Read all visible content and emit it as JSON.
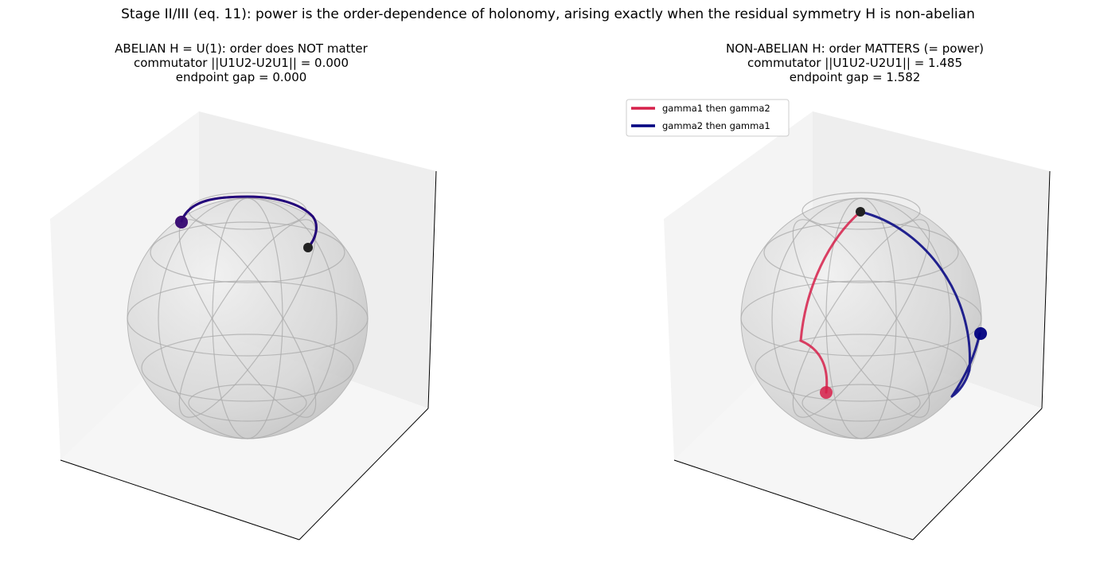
{
  "suptitle": "Stage II/III (eq. 11): power is the order-dependence of holonomy, arising exactly when the residual symmetry H is non-abelian",
  "panels": [
    {
      "title_lines": [
        "ABELIAN H = U(1): order does NOT matter",
        "commutator ||U1U2-U2U1|| = 0.000",
        "endpoint gap = 0.000"
      ],
      "commutator_norm": 0.0,
      "endpoint_gap": 0.0
    },
    {
      "title_lines": [
        "NON-ABELIAN H: order MATTERS (= power)",
        "commutator ||U1U2-U2U1|| = 1.485",
        "endpoint gap = 1.582"
      ],
      "commutator_norm": 1.485,
      "endpoint_gap": 1.582
    }
  ],
  "legend": {
    "entries": [
      {
        "label": "gamma1 then gamma2",
        "color": "#d6204a"
      },
      {
        "label": "gamma2 then gamma1",
        "color": "#000080"
      }
    ]
  },
  "colors": {
    "gamma1_then_gamma2": "#d6204a",
    "gamma2_then_gamma1": "#000080",
    "start_point": "#222222",
    "sphere": "#cccccc",
    "pane": "#f2f2f2"
  }
}
